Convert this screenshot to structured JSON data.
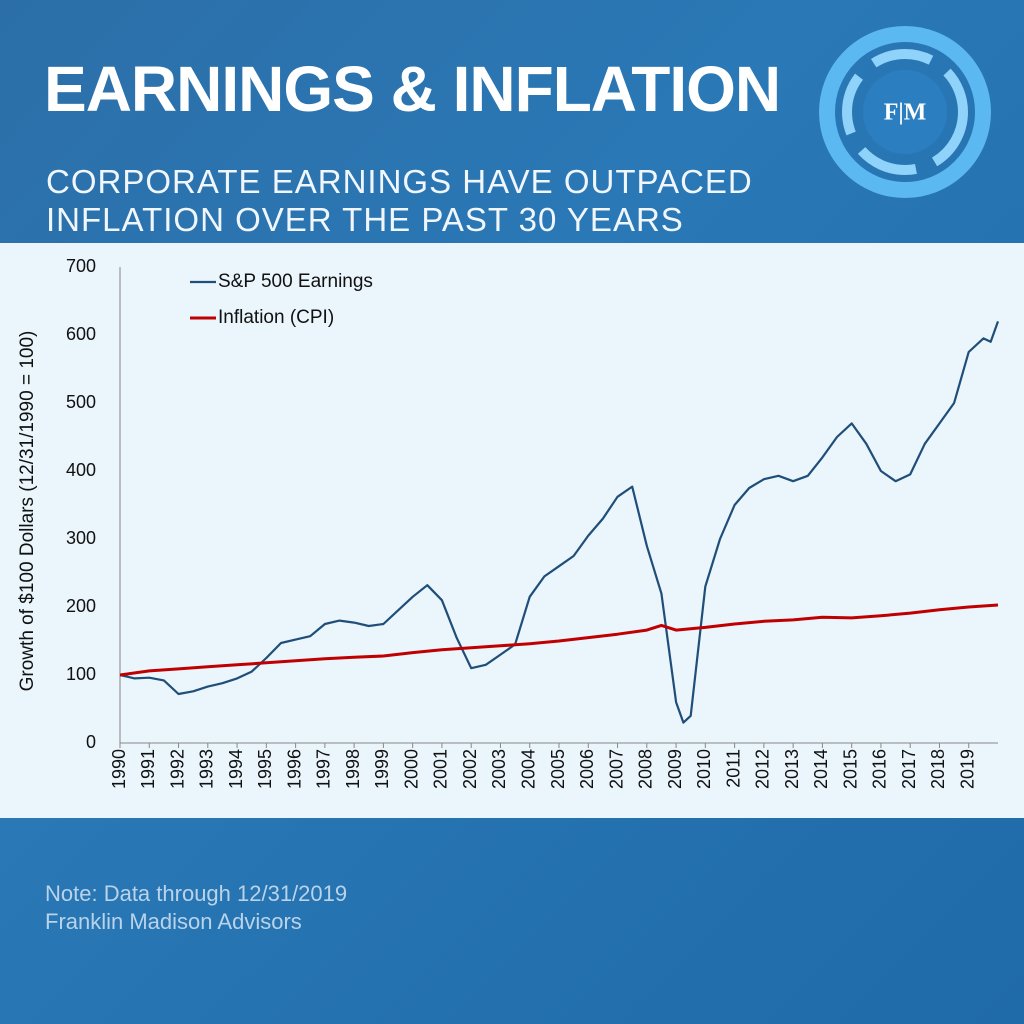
{
  "header": {
    "title": "EARNINGS & INFLATION",
    "subtitle": "CORPORATE EARNINGS HAVE OUTPACED INFLATION OVER THE PAST 30 YEARS",
    "logo_text": "F|M"
  },
  "chart_data": {
    "type": "line",
    "y_label": "Growth of $100 Dollars (12/31/1990 = 100)",
    "xlim": [
      1990,
      2020
    ],
    "xticks": [
      1990,
      1991,
      1992,
      1993,
      1994,
      1995,
      1996,
      1997,
      1998,
      1999,
      2000,
      2001,
      2002,
      2003,
      2004,
      2005,
      2006,
      2007,
      2008,
      2009,
      2010,
      2011,
      2012,
      2013,
      2014,
      2015,
      2016,
      2017,
      2018,
      2019
    ],
    "ylim": [
      0,
      700
    ],
    "yticks": [
      0,
      100,
      200,
      300,
      400,
      500,
      600,
      700
    ],
    "legend": "upper-left",
    "series": [
      {
        "name": "S&P 500 Earnings",
        "color": "#1f4e79",
        "x": [
          1990,
          1990.5,
          1991,
          1991.5,
          1992,
          1992.5,
          1993,
          1993.5,
          1994,
          1994.5,
          1995,
          1995.5,
          1996,
          1996.5,
          1997,
          1997.5,
          1998,
          1998.5,
          1999,
          1999.5,
          2000,
          2000.5,
          2001,
          2001.5,
          2002,
          2002.5,
          2003,
          2003.5,
          2004,
          2004.5,
          2005,
          2005.5,
          2006,
          2006.5,
          2007,
          2007.5,
          2008,
          2008.5,
          2009,
          2009.25,
          2009.5,
          2010,
          2010.5,
          2011,
          2011.5,
          2012,
          2012.5,
          2013,
          2013.5,
          2014,
          2014.5,
          2015,
          2015.5,
          2016,
          2016.5,
          2017,
          2017.5,
          2018,
          2018.5,
          2019,
          2019.5,
          2019.75,
          2020
        ],
        "values": [
          100,
          95,
          96,
          92,
          72,
          76,
          83,
          88,
          95,
          105,
          125,
          147,
          152,
          157,
          175,
          180,
          177,
          172,
          175,
          195,
          215,
          232,
          210,
          155,
          110,
          115,
          130,
          145,
          215,
          245,
          260,
          275,
          305,
          330,
          362,
          377,
          290,
          220,
          60,
          30,
          40,
          230,
          300,
          350,
          375,
          388,
          393,
          385,
          393,
          420,
          450,
          470,
          440,
          400,
          385,
          395,
          440,
          470,
          500,
          575,
          595,
          590,
          620
        ]
      },
      {
        "name": "Inflation (CPI)",
        "color": "#c00000",
        "x": [
          1990,
          1991,
          1992,
          1993,
          1994,
          1995,
          1996,
          1997,
          1998,
          1999,
          2000,
          2001,
          2002,
          2003,
          2004,
          2005,
          2006,
          2007,
          2008,
          2008.5,
          2009,
          2010,
          2011,
          2012,
          2013,
          2014,
          2015,
          2016,
          2017,
          2018,
          2019,
          2020
        ],
        "values": [
          100,
          106,
          109,
          112,
          115,
          118,
          121,
          124,
          126,
          128,
          133,
          137,
          140,
          143,
          146,
          150,
          155,
          160,
          166,
          173,
          166,
          170,
          175,
          179,
          181,
          185,
          184,
          187,
          191,
          196,
          200,
          203
        ]
      }
    ]
  },
  "notes": [
    "Note:  Data through 12/31/2019",
    "Franklin Madison Advisors"
  ]
}
